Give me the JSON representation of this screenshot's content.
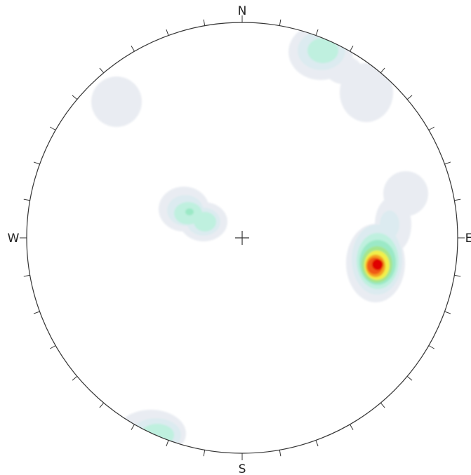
{
  "compass": {
    "north": "N",
    "south": "S",
    "west": "W",
    "east": "E"
  },
  "colors": {
    "outline": "#333333",
    "density_scale": [
      "#e9ecf2",
      "#dcebf0",
      "#bff0df",
      "#9be9c6",
      "#a6e58c",
      "#f2f04a",
      "#f4a020",
      "#f05a14",
      "#e00000"
    ]
  }
}
